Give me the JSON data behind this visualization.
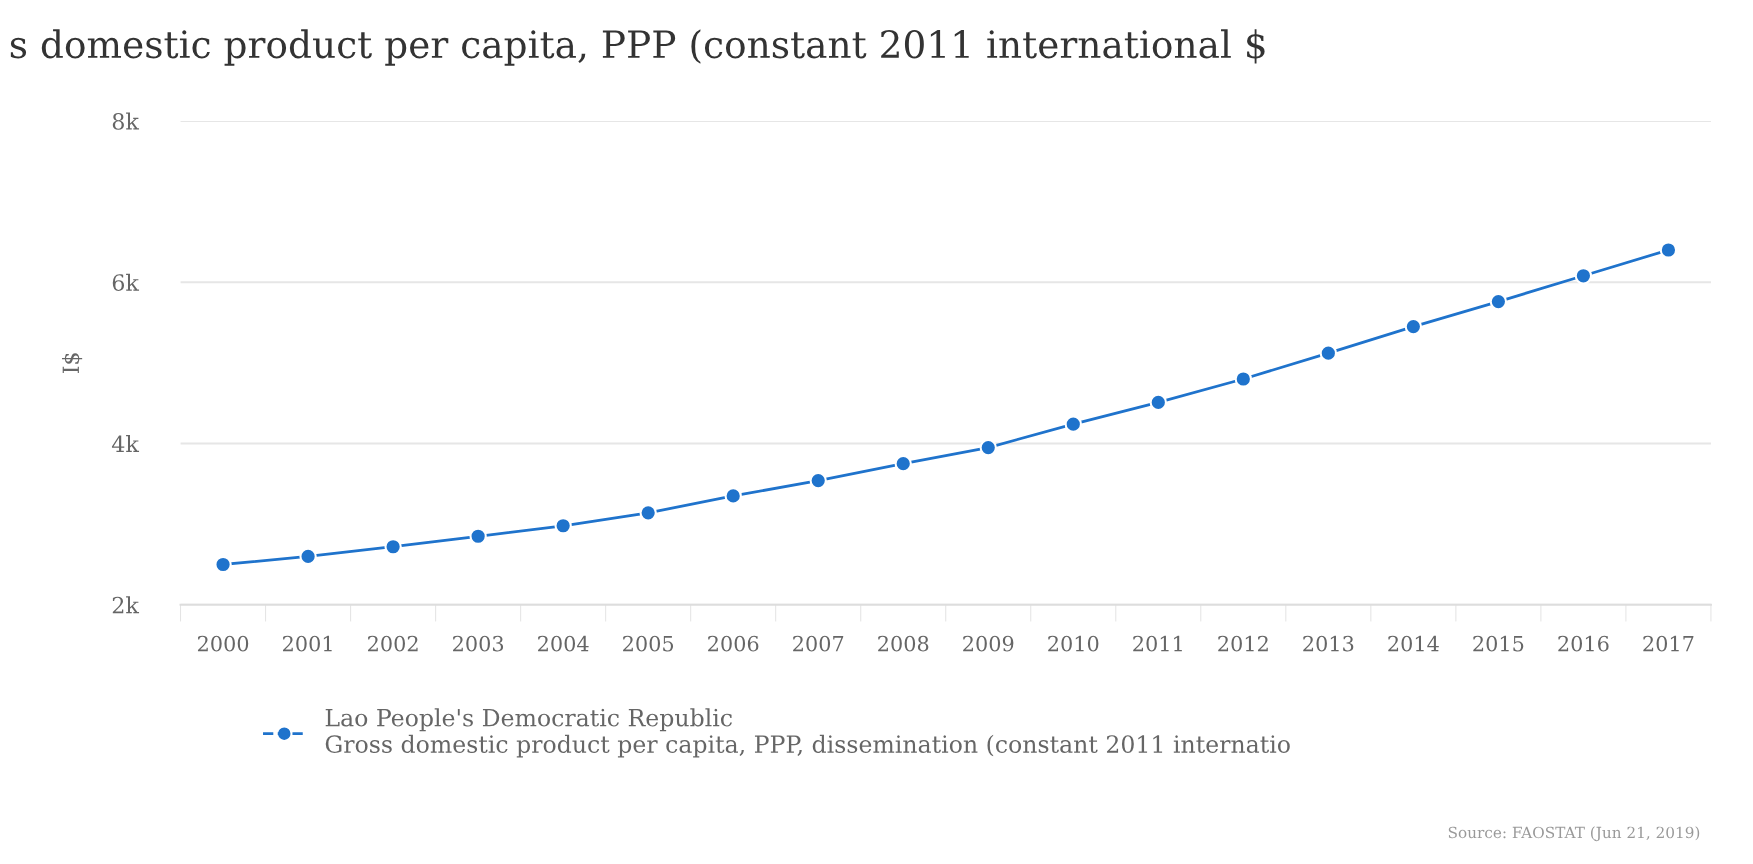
{
  "chart_data": {
    "type": "line",
    "title": "s domestic product per capita, PPP (constant 2011 international $",
    "ylabel": "I$",
    "categories": [
      "2000",
      "2001",
      "2002",
      "2003",
      "2004",
      "2005",
      "2006",
      "2007",
      "2008",
      "2009",
      "2010",
      "2011",
      "2012",
      "2013",
      "2014",
      "2015",
      "2016",
      "2017"
    ],
    "series": [
      {
        "name": "Lao People's Democratic Republic\nGross domestic product per capita, PPP, dissemination (constant 2011 internatio",
        "color": "#1f73cc",
        "values": [
          2500,
          2600,
          2720,
          2850,
          2980,
          3140,
          3350,
          3540,
          3750,
          3950,
          4240,
          4510,
          4800,
          5120,
          5450,
          5760,
          6080,
          6400
        ]
      }
    ],
    "ylim": [
      2000,
      8000
    ],
    "yticks": [
      {
        "value": 2000,
        "label": "2k"
      },
      {
        "value": 4000,
        "label": "4k"
      },
      {
        "value": 6000,
        "label": "6k"
      },
      {
        "value": 8000,
        "label": "8k"
      }
    ],
    "grid": "y",
    "legend": "bottom",
    "marker": "circle",
    "line_style": "solid",
    "annotations": [
      "Source: FAOSTAT (Jun 21, 2019)"
    ]
  }
}
